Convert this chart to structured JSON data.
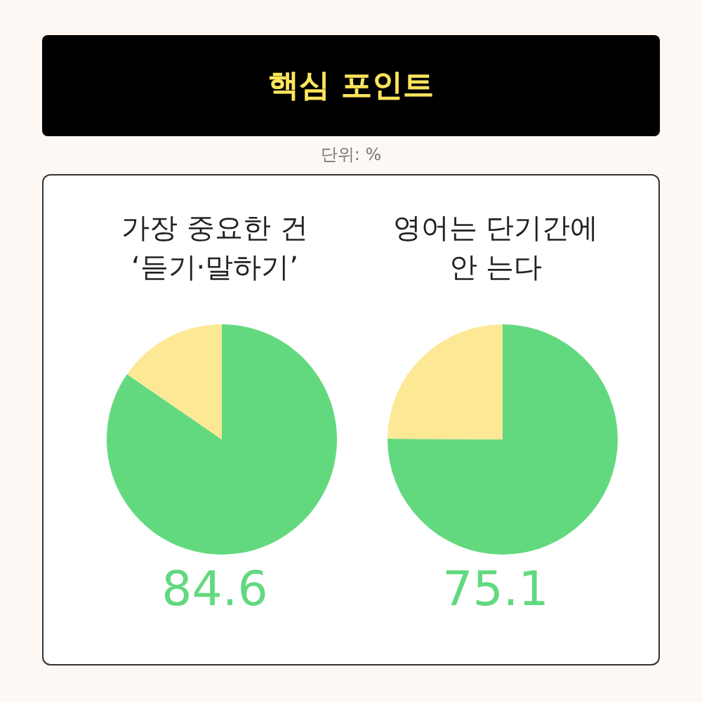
{
  "chart_data": [
    {
      "type": "other",
      "title": "핵심 포인트",
      "subtitle": "단위: %"
    },
    {
      "type": "pie",
      "title": "가장 중요한 건\n‘듣기·말하기’",
      "categories": [
        null,
        null
      ],
      "values": [
        84.6,
        15.4
      ],
      "colors": [
        "#63d97f",
        "#fde896"
      ],
      "value_labels": [
        "84.6",
        null
      ]
    },
    {
      "type": "pie",
      "title": "영어는 단기간에\n안 는다",
      "categories": [
        null,
        null
      ],
      "values": [
        75.1,
        24.9
      ],
      "colors": [
        "#63d97f",
        "#fde896"
      ],
      "value_labels": [
        "75.1",
        null
      ]
    }
  ]
}
